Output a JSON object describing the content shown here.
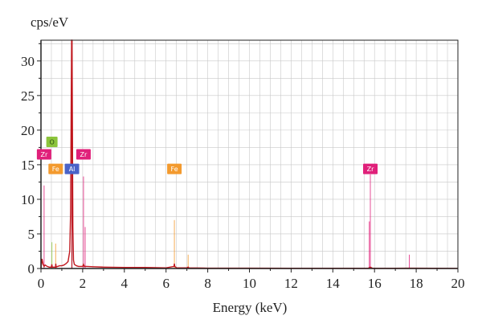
{
  "chart_data": {
    "type": "line",
    "title": "",
    "xlabel": "Energy (keV)",
    "ylabel": "cps/eV",
    "xlim": [
      0,
      20
    ],
    "ylim": [
      0,
      33
    ],
    "x_ticks": [
      "0",
      "2",
      "4",
      "6",
      "8",
      "10",
      "12",
      "14",
      "16",
      "18",
      "20"
    ],
    "y_ticks": [
      "0",
      "5",
      "10",
      "15",
      "20",
      "25",
      "30"
    ],
    "grid": true,
    "colors": {
      "spectrum": "#c0161d",
      "grid": "#c8c8c8",
      "axis": "#222222",
      "Zr": "#e0207a",
      "O": "#8cc43c",
      "Fe": "#f39a2e",
      "Al": "#4a63c8"
    },
    "series": [
      {
        "values": [
          [
            0.0,
            0.1
          ],
          [
            0.05,
            1.4
          ],
          [
            0.1,
            0.6
          ],
          [
            0.15,
            0.3
          ],
          [
            0.2,
            0.5
          ],
          [
            0.25,
            0.4
          ],
          [
            0.3,
            0.3
          ],
          [
            0.4,
            0.2
          ],
          [
            0.5,
            0.2
          ],
          [
            0.52,
            0.6
          ],
          [
            0.54,
            0.2
          ],
          [
            0.6,
            0.2
          ],
          [
            0.7,
            0.2
          ],
          [
            0.71,
            0.7
          ],
          [
            0.73,
            0.2
          ],
          [
            0.8,
            0.3
          ],
          [
            0.9,
            0.4
          ],
          [
            1.0,
            0.4
          ],
          [
            1.1,
            0.5
          ],
          [
            1.2,
            0.7
          ],
          [
            1.3,
            1.0
          ],
          [
            1.38,
            2.5
          ],
          [
            1.42,
            8.0
          ],
          [
            1.45,
            24.0
          ],
          [
            1.47,
            33.0
          ],
          [
            1.49,
            33.0
          ],
          [
            1.51,
            20.0
          ],
          [
            1.53,
            6.0
          ],
          [
            1.56,
            1.2
          ],
          [
            1.6,
            0.6
          ],
          [
            1.7,
            0.4
          ],
          [
            1.8,
            0.3
          ],
          [
            2.0,
            0.3
          ],
          [
            2.04,
            0.6
          ],
          [
            2.08,
            0.3
          ],
          [
            2.2,
            0.3
          ],
          [
            2.5,
            0.25
          ],
          [
            3.0,
            0.2
          ],
          [
            4.0,
            0.15
          ],
          [
            5.0,
            0.15
          ],
          [
            6.0,
            0.1
          ],
          [
            6.38,
            0.3
          ],
          [
            6.4,
            0.7
          ],
          [
            6.42,
            0.3
          ],
          [
            6.5,
            0.1
          ],
          [
            7.0,
            0.1
          ],
          [
            7.06,
            0.2
          ],
          [
            7.1,
            0.1
          ],
          [
            8.0,
            0.05
          ],
          [
            10.0,
            0.05
          ],
          [
            12.0,
            0.03
          ],
          [
            14.0,
            0.03
          ],
          [
            15.7,
            0.05
          ],
          [
            15.8,
            0.2
          ],
          [
            15.9,
            0.05
          ],
          [
            17.0,
            0.03
          ],
          [
            17.7,
            0.05
          ],
          [
            20.0,
            0.02
          ]
        ]
      }
    ],
    "line_markers": [
      {
        "element": "Zr",
        "x": 0.15,
        "height": 12.0,
        "label_y": 16.5
      },
      {
        "element": "O",
        "x": 0.525,
        "height": 3.8,
        "label_y": 18.3
      },
      {
        "element": "Fe",
        "x": 0.705,
        "height": 3.6,
        "label_y": 14.4
      },
      {
        "element": "Al",
        "x": 1.486,
        "height": 13.5,
        "label_y": 14.4
      },
      {
        "element": "Zr",
        "x": 2.04,
        "height": 13.3,
        "label_y": 16.5
      },
      {
        "element": "Zr",
        "x": 2.12,
        "height": 6.0,
        "label_y": null
      },
      {
        "element": "Fe",
        "x": 6.4,
        "height": 7.0,
        "label_y": 14.4
      },
      {
        "element": "Fe",
        "x": 7.06,
        "height": 2.0,
        "label_y": null
      },
      {
        "element": "Zr",
        "x": 15.75,
        "height": 6.8,
        "label_y": null
      },
      {
        "element": "Zr",
        "x": 15.8,
        "height": 13.6,
        "label_y": 14.4
      },
      {
        "element": "Zr",
        "x": 17.67,
        "height": 2.0,
        "label_y": null
      }
    ]
  }
}
